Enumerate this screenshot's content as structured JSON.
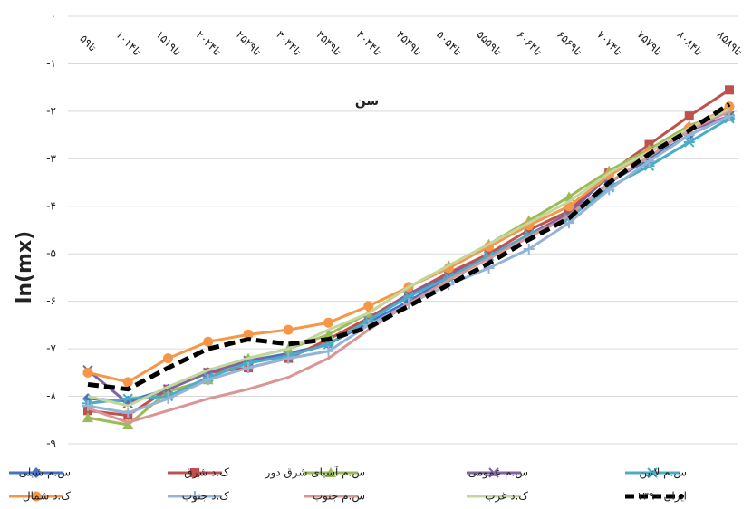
{
  "chart_data": {
    "type": "line",
    "x_label": "سن",
    "y_label": "ln(mx)",
    "categories": [
      "۵تا۹",
      "۱۰تا۱۴",
      "۱۵تا۱۹",
      "۲۰تا۲۴",
      "۲۵تا۲۹",
      "۳۰تا۳۴",
      "۳۵تا۳۹",
      "۴۰تا۴۴",
      "۴۵تا۴۹",
      "۵۰تا۵۴",
      "۵۵تا۵۹",
      "۶۰تا۶۴",
      "۶۵تا۶۹",
      "۷۰تا۷۴",
      "۷۵تا۷۹",
      "۸۰تا۸۴",
      "۸۵تا۸۹"
    ],
    "ylim": [
      -9,
      0
    ],
    "yticks": [
      {
        "value": 0,
        "label": "۰"
      },
      {
        "value": -1,
        "label": "-۱"
      },
      {
        "value": -2,
        "label": "-۲"
      },
      {
        "value": -3,
        "label": "-۳"
      },
      {
        "value": -4,
        "label": "-۴"
      },
      {
        "value": -5,
        "label": "-۵"
      },
      {
        "value": -6,
        "label": "-۶"
      },
      {
        "value": -7,
        "label": "-۷"
      },
      {
        "value": -8,
        "label": "-۸"
      },
      {
        "value": -9,
        "label": "-۹"
      }
    ],
    "grid": true,
    "legend": "bottom",
    "series": [
      {
        "name": "س.م شیلی",
        "color": "#4472c4",
        "marker": "diamond",
        "values": [
          -8.05,
          -8.1,
          -7.85,
          -7.5,
          -7.25,
          -7.1,
          -6.9,
          -6.45,
          -6.0,
          -5.5,
          -5.05,
          -4.6,
          -4.2,
          -3.5,
          -3.0,
          -2.5,
          -2.1
        ]
      },
      {
        "name": "ک.د شرق",
        "color": "#c0504d",
        "marker": "square",
        "values": [
          -8.3,
          -8.4,
          -7.85,
          -7.5,
          -7.4,
          -7.2,
          -6.8,
          -6.35,
          -5.85,
          -5.4,
          -5.0,
          -4.5,
          -4.1,
          -3.3,
          -2.7,
          -2.1,
          -1.55
        ]
      },
      {
        "name": "س.م آسیای شرق دور",
        "color": "#9bbb59",
        "marker": "triangle",
        "values": [
          -8.45,
          -8.6,
          -7.9,
          -7.65,
          -7.2,
          -7.0,
          -6.7,
          -6.25,
          -5.7,
          -5.25,
          -4.8,
          -4.3,
          -3.8,
          -3.25,
          -2.8,
          -2.3,
          -2.0
        ]
      },
      {
        "name": "س.م عمومی",
        "color": "#8064a2",
        "marker": "x",
        "values": [
          -7.45,
          -8.15,
          -7.85,
          -7.5,
          -7.25,
          -7.15,
          -6.9,
          -6.4,
          -5.85,
          -5.45,
          -5.05,
          -4.6,
          -4.15,
          -3.35,
          -2.85,
          -2.4,
          -2.1
        ]
      },
      {
        "name": "س.م لاتین",
        "color": "#4bacc6",
        "marker": "star",
        "values": [
          -8.15,
          -8.05,
          -8.0,
          -7.6,
          -7.3,
          -7.15,
          -6.9,
          -6.4,
          -5.9,
          -5.5,
          -5.05,
          -4.6,
          -4.25,
          -3.6,
          -3.15,
          -2.65,
          -2.15
        ]
      },
      {
        "name": "ک.د شمال",
        "color": "#f79646",
        "marker": "circle",
        "values": [
          -7.5,
          -7.7,
          -7.2,
          -6.85,
          -6.7,
          -6.6,
          -6.45,
          -6.1,
          -5.7,
          -5.3,
          -4.85,
          -4.4,
          -4.0,
          -3.35,
          -2.85,
          -2.35,
          -1.9
        ]
      },
      {
        "name": "ک.د جنوب",
        "color": "#95b3d7",
        "marker": "plus",
        "values": [
          -8.2,
          -8.35,
          -8.05,
          -7.65,
          -7.4,
          -7.2,
          -7.05,
          -6.5,
          -6.05,
          -5.65,
          -5.3,
          -4.9,
          -4.35,
          -3.65,
          -3.05,
          -2.5,
          -2.1
        ]
      },
      {
        "name": "س.م جنوب",
        "color": "#d99694",
        "marker": "none",
        "values": [
          -8.25,
          -8.55,
          -8.3,
          -8.05,
          -7.85,
          -7.6,
          -7.2,
          -6.6,
          -6.05,
          -5.55,
          -5.1,
          -4.65,
          -4.2,
          -3.5,
          -2.95,
          -2.4,
          -2.0
        ]
      },
      {
        "name": "ک.د غرب",
        "color": "#c3d69b",
        "marker": "none",
        "values": [
          -8.0,
          -8.2,
          -7.8,
          -7.45,
          -7.2,
          -7.0,
          -6.6,
          -6.25,
          -5.7,
          -5.25,
          -4.8,
          -4.35,
          -3.9,
          -3.3,
          -2.85,
          -2.35,
          -1.95
        ]
      },
      {
        "name": "ایران ۱۳۹۰",
        "color": "#000000",
        "marker": "none",
        "dashed": true,
        "values": [
          -7.75,
          -7.85,
          -7.4,
          -7.0,
          -6.8,
          -6.9,
          -6.8,
          -6.55,
          -6.1,
          -5.65,
          -5.2,
          -4.7,
          -4.25,
          -3.5,
          -2.9,
          -2.4,
          -1.85
        ]
      }
    ]
  }
}
